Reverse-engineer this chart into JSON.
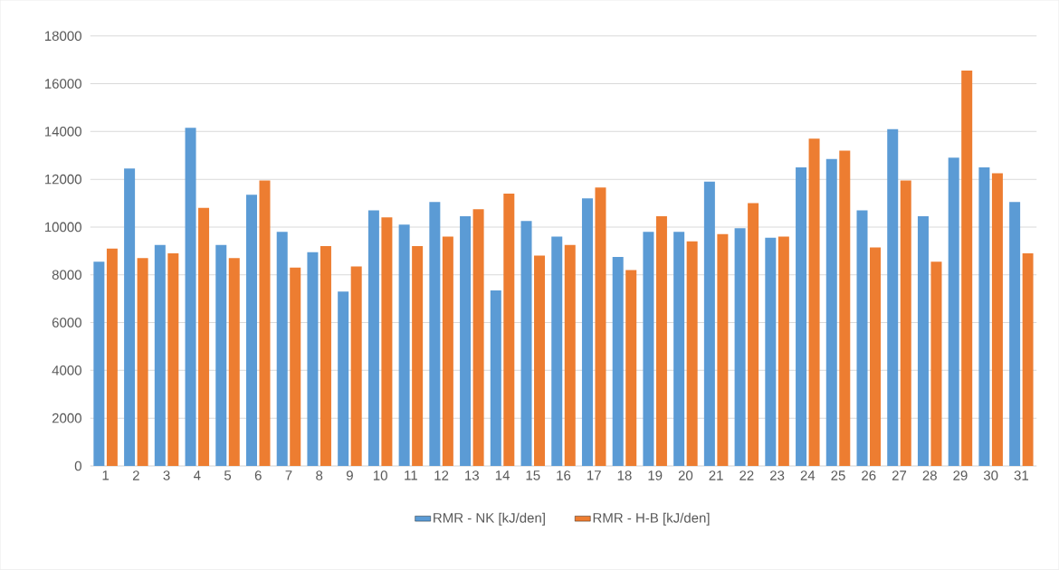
{
  "chart_data": {
    "type": "bar",
    "categories": [
      "1",
      "2",
      "3",
      "4",
      "5",
      "6",
      "7",
      "8",
      "9",
      "10",
      "11",
      "12",
      "13",
      "14",
      "15",
      "16",
      "17",
      "18",
      "19",
      "20",
      "21",
      "22",
      "23",
      "24",
      "25",
      "26",
      "27",
      "28",
      "29",
      "30",
      "31"
    ],
    "series": [
      {
        "name": "RMR - NK [kJ/den]",
        "color": "#5b9bd5",
        "values": [
          8550,
          12450,
          9250,
          14150,
          9250,
          11350,
          9800,
          8950,
          7300,
          10700,
          10100,
          11050,
          10450,
          7350,
          10250,
          9600,
          11200,
          8750,
          9800,
          9800,
          11900,
          9950,
          9550,
          12500,
          12850,
          10700,
          14100,
          10450,
          12900,
          12500,
          11050
        ]
      },
      {
        "name": "RMR - H-B [kJ/den]",
        "color": "#ed7d31",
        "values": [
          9100,
          8700,
          8900,
          10800,
          8700,
          11950,
          8300,
          9200,
          8350,
          10400,
          9200,
          9600,
          10750,
          11400,
          8800,
          9250,
          11650,
          8200,
          10450,
          9400,
          9700,
          11000,
          9600,
          13700,
          13200,
          9150,
          11950,
          8550,
          16550,
          12250,
          8900
        ]
      }
    ],
    "ylim": [
      0,
      18000
    ],
    "yticks": [
      0,
      2000,
      4000,
      6000,
      8000,
      10000,
      12000,
      14000,
      16000,
      18000
    ],
    "grid": "y",
    "legend": "bottom"
  }
}
